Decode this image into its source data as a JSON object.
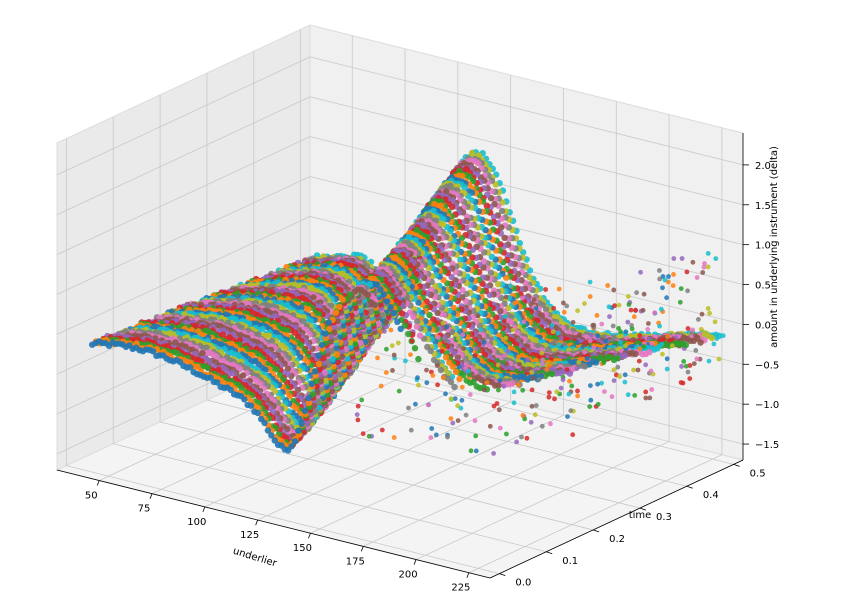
{
  "chart_data": {
    "type": "scatter",
    "projection": "3d",
    "title": "",
    "xlabel": "underlier",
    "ylabel": "time",
    "zlabel": "amount in underlying instrument (delta)",
    "xlim": [
      30,
      235
    ],
    "ylim": [
      -0.02,
      0.52
    ],
    "zlim": [
      -1.7,
      2.4
    ],
    "xticks": [
      "50",
      "75",
      "100",
      "125",
      "150",
      "175",
      "200",
      "225"
    ],
    "yticks": [
      "0.0",
      "0.1",
      "0.2",
      "0.3",
      "0.4",
      "0.5"
    ],
    "zticks": [
      "−1.5",
      "−1.0",
      "−0.5",
      "0.0",
      "0.5",
      "1.0",
      "1.5",
      "2.0"
    ],
    "xtick_values": [
      50,
      75,
      100,
      125,
      150,
      175,
      200,
      225
    ],
    "ytick_values": [
      0.0,
      0.1,
      0.2,
      0.3,
      0.4,
      0.5
    ],
    "ztick_values": [
      -1.5,
      -1.0,
      -0.5,
      0.0,
      0.5,
      1.0,
      1.5,
      2.0
    ],
    "grid": true,
    "legend": "none",
    "series_colors": [
      "#1f77b4",
      "#ff7f0e",
      "#2ca02c",
      "#d62728",
      "#9467bd",
      "#8c564b",
      "#e377c2",
      "#7f7f7f",
      "#bcbd22",
      "#17becf"
    ],
    "series_count": 60,
    "approx_curve_shape": {
      "description_x_range": [
        40,
        220
      ],
      "delta_at_low_underlier": -0.9,
      "delta_trough": -1.4,
      "delta_peak": 1.8,
      "delta_at_high_underlier": 0.1
    }
  }
}
